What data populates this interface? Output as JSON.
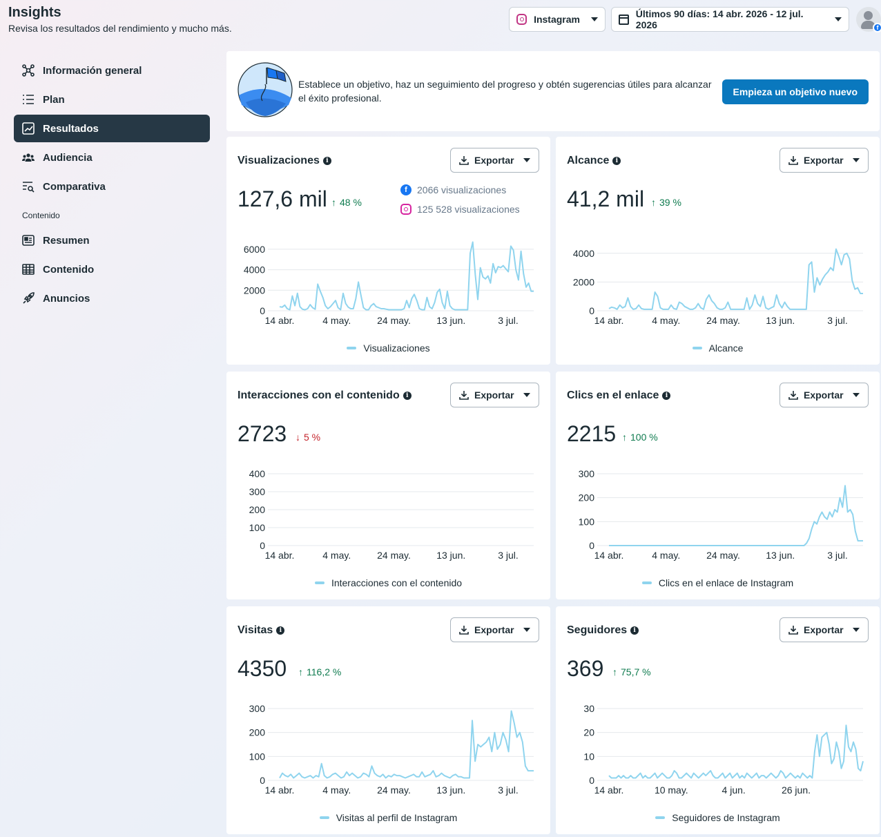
{
  "header": {
    "title": "Insights",
    "subtitle": "Revisa los resultados del rendimiento y mucho más.",
    "platform": "Instagram",
    "date_range": "Últimos 90 días: 14 abr. 2026 - 12 jul. 2026"
  },
  "sidebar": {
    "items": [
      {
        "label": "Información general",
        "icon": "network-icon"
      },
      {
        "label": "Plan",
        "icon": "list-icon"
      },
      {
        "label": "Resultados",
        "icon": "trend-icon",
        "active": true
      },
      {
        "label": "Audiencia",
        "icon": "people-icon"
      },
      {
        "label": "Comparativa",
        "icon": "compare-icon"
      }
    ],
    "section_label": "Contenido",
    "content_items": [
      {
        "label": "Resumen",
        "icon": "summary-icon"
      },
      {
        "label": "Contenido",
        "icon": "table-icon"
      },
      {
        "label": "Anuncios",
        "icon": "rocket-icon"
      }
    ]
  },
  "banner": {
    "text": "Establece un objetivo, haz un seguimiento del progreso y obtén sugerencias útiles para alcanzar el éxito profesional.",
    "button": "Empieza un objetivo nuevo"
  },
  "export_label": "Exportar",
  "colors": {
    "line": "#8fd4ee",
    "grid": "#e4e8ec",
    "up": "#0f7b4f",
    "down": "#c4232b",
    "button": "#0a78be"
  },
  "cards": {
    "views": {
      "title": "Visualizaciones",
      "value": "127,6 mil",
      "delta": "48 %",
      "direction": "up",
      "fb_split": "2066 visualizaciones",
      "ig_split": "125 528 visualizaciones",
      "legend": "Visualizaciones"
    },
    "reach": {
      "title": "Alcance",
      "value": "41,2 mil",
      "delta": "39 %",
      "direction": "up",
      "legend": "Alcance"
    },
    "interactions": {
      "title": "Interacciones con el contenido",
      "value": "2723",
      "delta": "5 %",
      "direction": "down",
      "legend": "Interacciones con el contenido"
    },
    "clicks": {
      "title": "Clics en el enlace",
      "value": "2215",
      "delta": "100 %",
      "direction": "up",
      "legend": "Clics en el enlace de Instagram"
    },
    "visits": {
      "title": "Visitas",
      "value": "4350",
      "delta": "116,2 %",
      "direction": "up",
      "legend": "Visitas al perfil de Instagram"
    },
    "followers": {
      "title": "Seguidores",
      "value": "369",
      "delta": "75,7 %",
      "direction": "up",
      "legend": "Seguidores de Instagram"
    }
  },
  "chart_data": [
    {
      "type": "line",
      "id": "views",
      "series": [
        {
          "name": "Visualizaciones",
          "values": [
            400,
            350,
            550,
            200,
            100,
            1450,
            500,
            1700,
            400,
            150,
            100,
            200,
            600,
            300,
            150,
            2600,
            1900,
            1300,
            500,
            200,
            400,
            700,
            1000,
            300,
            100,
            1700,
            700,
            350,
            200,
            200,
            1200,
            2800,
            1500,
            300,
            100,
            100,
            500,
            700,
            400,
            300,
            200,
            200,
            150,
            100,
            100,
            100,
            100,
            100,
            100,
            200,
            1000,
            300,
            1200,
            1600,
            1000,
            200,
            100,
            100,
            1300,
            400,
            200,
            800,
            1800,
            2100,
            800,
            200,
            1900,
            500,
            200,
            100,
            100,
            100,
            100,
            100,
            100,
            5600,
            6700,
            3500,
            1100,
            4200,
            3300,
            3100,
            3400,
            2700,
            4600,
            3700,
            4300,
            4200,
            4400,
            4100,
            3800,
            6300,
            5900,
            4000,
            3000,
            5800,
            3600,
            2300,
            2700,
            1900,
            1900
          ]
        }
      ],
      "x_ticks": [
        "14 abr.",
        "4 may.",
        "24 may.",
        "13 jun.",
        "3 jul."
      ],
      "ylim": [
        0,
        7000
      ],
      "y_ticks": [
        0,
        2000,
        4000,
        6000
      ]
    },
    {
      "type": "line",
      "id": "reach",
      "series": [
        {
          "name": "Alcance",
          "values": [
            150,
            250,
            200,
            100,
            400,
            200,
            300,
            900,
            300,
            100,
            150,
            400,
            150,
            100,
            100,
            100,
            100,
            1300,
            1000,
            200,
            100,
            100,
            100,
            400,
            150,
            100,
            600,
            500,
            300,
            200,
            100,
            100,
            200,
            500,
            200,
            100,
            800,
            1100,
            700,
            500,
            200,
            100,
            100,
            200,
            600,
            100,
            100,
            100,
            100,
            100,
            100,
            900,
            100,
            400,
            1100,
            500,
            300,
            1000,
            200,
            100,
            200,
            300,
            1100,
            500,
            200,
            600,
            300,
            100,
            100,
            100,
            100,
            100,
            100,
            100,
            3200,
            3400,
            1300,
            2300,
            1800,
            2200,
            2500,
            2700,
            3000,
            2800,
            4300,
            3800,
            3200,
            3900,
            4000,
            3600,
            2100,
            1500,
            1600,
            1200,
            1200
          ]
        }
      ],
      "x_ticks": [
        "14 abr.",
        "4 may.",
        "24 may.",
        "13 jun.",
        "3 jul."
      ],
      "ylim": [
        0,
        5000
      ],
      "y_ticks": [
        0,
        2000,
        4000
      ]
    },
    {
      "type": "line",
      "id": "interactions",
      "series": [],
      "x_ticks": [
        "14 abr.",
        "4 may.",
        "24 may.",
        "13 jun.",
        "3 jul."
      ],
      "ylim": [
        0,
        400
      ],
      "y_ticks": [
        0,
        100,
        200,
        300,
        400
      ]
    },
    {
      "type": "line",
      "id": "clicks",
      "series": [
        {
          "name": "Clics en el enlace de Instagram",
          "values": [
            0,
            0,
            0,
            0,
            0,
            0,
            0,
            0,
            0,
            0,
            0,
            0,
            0,
            0,
            0,
            0,
            0,
            0,
            0,
            0,
            0,
            0,
            0,
            0,
            0,
            0,
            0,
            0,
            0,
            0,
            0,
            0,
            0,
            0,
            0,
            0,
            0,
            0,
            0,
            0,
            0,
            0,
            0,
            0,
            0,
            0,
            0,
            0,
            0,
            0,
            0,
            0,
            0,
            0,
            0,
            0,
            0,
            0,
            0,
            0,
            0,
            0,
            0,
            0,
            0,
            0,
            0,
            0,
            0,
            0,
            0,
            0,
            0,
            0,
            0,
            0,
            0,
            10,
            30,
            70,
            100,
            90,
            120,
            140,
            120,
            110,
            140,
            120,
            150,
            140,
            200,
            160,
            250,
            140,
            150,
            130,
            60,
            20,
            20,
            20
          ]
        }
      ],
      "x_ticks": [
        "14 abr.",
        "4 may.",
        "24 may.",
        "13 jun.",
        "3 jul."
      ],
      "ylim": [
        0,
        300
      ],
      "y_ticks": [
        0,
        100,
        200,
        300
      ]
    },
    {
      "type": "line",
      "id": "visits",
      "series": [
        {
          "name": "Visitas al perfil de Instagram",
          "values": [
            10,
            30,
            20,
            15,
            25,
            10,
            20,
            30,
            15,
            10,
            15,
            20,
            10,
            20,
            15,
            70,
            20,
            10,
            15,
            25,
            30,
            20,
            10,
            15,
            35,
            20,
            30,
            20,
            10,
            15,
            30,
            25,
            15,
            60,
            30,
            20,
            15,
            25,
            10,
            20,
            15,
            25,
            20,
            20,
            15,
            10,
            15,
            20,
            25,
            15,
            15,
            35,
            15,
            20,
            25,
            40,
            15,
            20,
            30,
            20,
            15,
            10,
            20,
            25,
            15,
            15,
            10,
            10,
            10,
            250,
            80,
            150,
            140,
            150,
            160,
            180,
            120,
            200,
            130,
            150,
            200,
            170,
            120,
            290,
            240,
            180,
            200,
            160,
            60,
            40,
            40,
            40
          ]
        }
      ],
      "x_ticks": [
        "14 abr.",
        "4 may.",
        "24 may.",
        "13 jun.",
        "3 jul."
      ],
      "ylim": [
        0,
        300
      ],
      "y_ticks": [
        0,
        100,
        200,
        300
      ]
    },
    {
      "type": "line",
      "id": "followers",
      "series": [
        {
          "name": "Seguidores de Instagram",
          "values": [
            2,
            1,
            1,
            1,
            2,
            1,
            2,
            1,
            1,
            2,
            1,
            1,
            2,
            3,
            1,
            2,
            1,
            1,
            2,
            3,
            1,
            2,
            3,
            2,
            1,
            1,
            2,
            4,
            3,
            1,
            1,
            2,
            3,
            2,
            1,
            3,
            2,
            1,
            2,
            3,
            2,
            3,
            4,
            2,
            1,
            1,
            2,
            3,
            1,
            2,
            3,
            1,
            2,
            3,
            1,
            2,
            1,
            3,
            2,
            1,
            2,
            3,
            1,
            2,
            2,
            1,
            2,
            3,
            2,
            1,
            2,
            4,
            3,
            1,
            2,
            3,
            2,
            1,
            2,
            1,
            3,
            2,
            1,
            2,
            1,
            12,
            19,
            10,
            18,
            19,
            20,
            15,
            7,
            9,
            16,
            12,
            5,
            8,
            23,
            14,
            12,
            16,
            13,
            5,
            4,
            8
          ]
        }
      ],
      "x_ticks": [
        "14 abr.",
        "10 may.",
        "4 jun.",
        "26 jun."
      ],
      "ylim": [
        0,
        30
      ],
      "y_ticks": [
        0,
        10,
        20,
        30
      ]
    }
  ]
}
